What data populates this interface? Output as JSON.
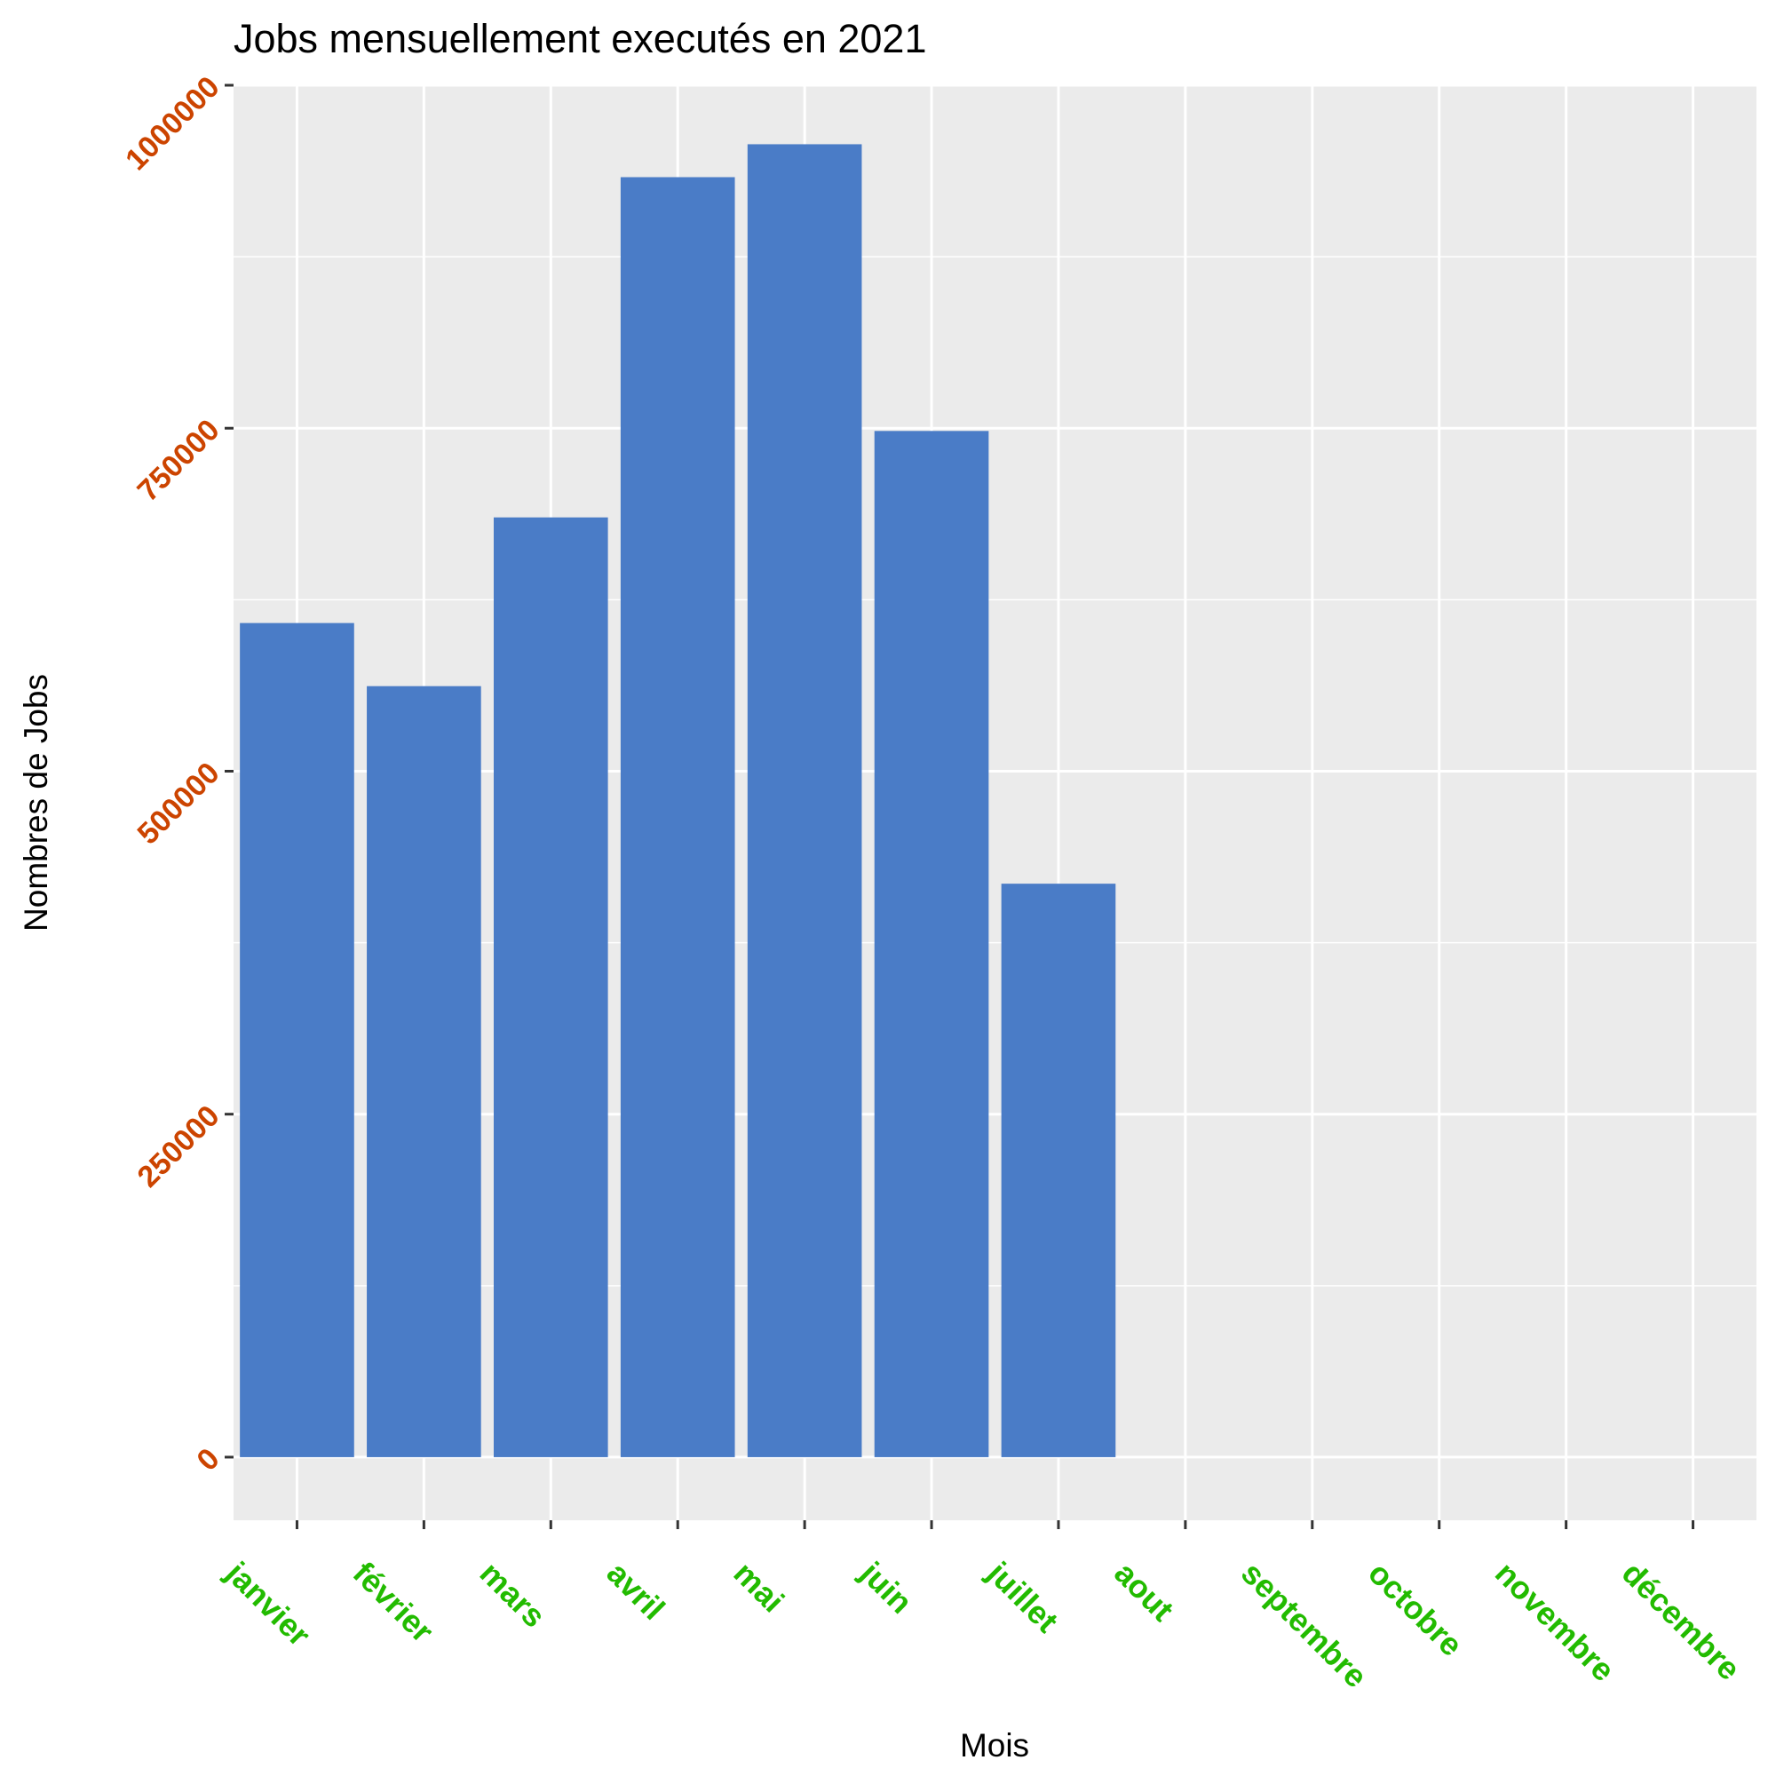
{
  "chart_data": {
    "type": "bar",
    "title": "Jobs mensuellement executés en 2021",
    "xlabel": "Mois",
    "ylabel": "Nombres de Jobs",
    "categories": [
      "janvier",
      "février",
      "mars",
      "avril",
      "mai",
      "juin",
      "juillet",
      "aout",
      "septembre",
      "octobre",
      "novembre",
      "décembre"
    ],
    "values": [
      608000,
      562000,
      685000,
      933000,
      957000,
      748000,
      418000,
      null,
      null,
      null,
      null,
      null
    ],
    "yticks": [
      0,
      250000,
      500000,
      750000,
      1000000
    ],
    "ytick_labels": [
      "0",
      "250000",
      "500000",
      "750000",
      "1000000"
    ],
    "ylim": [
      -46000,
      1000000
    ],
    "grid": true,
    "legend": "none",
    "colors": {
      "bar": "#4a7cc7",
      "panel": "#ebebeb",
      "grid": "#ffffff",
      "ytick_text": "#cc4400",
      "xtick_text": "#22bb00"
    }
  }
}
